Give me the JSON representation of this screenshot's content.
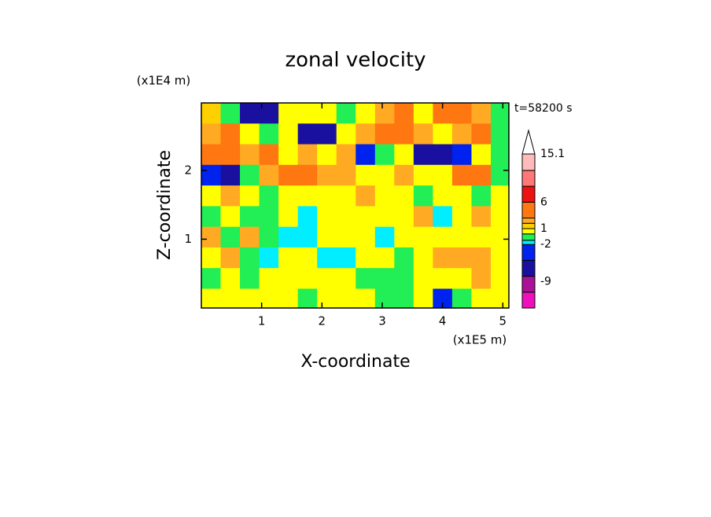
{
  "chart_data": {
    "type": "contour",
    "title": "zonal velocity",
    "xlabel": "X-coordinate",
    "ylabel": "Z-coordinate",
    "x_unit": "(x1E5 m)",
    "y_unit": "(x1E4 m)",
    "annotation": "t=58200 s",
    "xlim": [
      0,
      5.1
    ],
    "ylim": [
      0,
      2.98
    ],
    "xticks": [
      1,
      2,
      3,
      4,
      5
    ],
    "yticks": [
      1,
      2
    ],
    "x": [
      0.16,
      0.48,
      0.8,
      1.12,
      1.44,
      1.76,
      2.08,
      2.4,
      2.72,
      3.04,
      3.36,
      3.68,
      4.0,
      4.32,
      4.64,
      4.96
    ],
    "y": [
      2.83,
      2.53,
      2.23,
      1.93,
      1.63,
      1.33,
      1.03,
      0.73,
      0.43,
      0.13
    ],
    "z": [
      [
        1,
        -1,
        -7,
        -7,
        0.5,
        0.5,
        0.5,
        -1,
        0.5,
        2.5,
        4,
        0.5,
        4,
        4,
        2.5,
        -1
      ],
      [
        2.5,
        4,
        0.5,
        -1,
        0.5,
        -7,
        -7,
        0.5,
        2.5,
        4,
        4,
        2.5,
        0.5,
        2.5,
        4,
        -1
      ],
      [
        4,
        4,
        2.5,
        4,
        0.5,
        2.5,
        0.5,
        2.5,
        -4,
        -1,
        0.5,
        -7,
        -7,
        -4,
        0.5,
        -1
      ],
      [
        -4,
        -7,
        -1,
        2.5,
        4,
        4,
        2.5,
        2.5,
        0.5,
        0.5,
        2.5,
        0.5,
        0.5,
        4,
        4,
        -1
      ],
      [
        0.5,
        2.5,
        0.5,
        -1,
        0.5,
        0.5,
        0.5,
        0.5,
        2.5,
        0.5,
        0.5,
        -1,
        0.5,
        0.5,
        -1,
        0.5
      ],
      [
        -1,
        0.5,
        -1,
        -1,
        0.5,
        -1.5,
        0.5,
        0.5,
        0.5,
        0.5,
        0.5,
        2.5,
        -1.5,
        0.5,
        2.5,
        0.5
      ],
      [
        2.5,
        -1,
        2.5,
        -1,
        -1.5,
        -1.5,
        0.5,
        0.5,
        0.5,
        -1.5,
        0.5,
        0.5,
        0.5,
        0.5,
        0.5,
        0.5
      ],
      [
        0.5,
        2.5,
        -1,
        -1.5,
        0.5,
        0.5,
        -1.5,
        -1.5,
        0.5,
        0.5,
        -1,
        0.5,
        2.5,
        2.5,
        2.5,
        0.5
      ],
      [
        -1,
        0.5,
        -1,
        0.5,
        0.5,
        0.5,
        0.5,
        0.5,
        -1,
        -1,
        -1,
        0.5,
        0.5,
        0.5,
        2.5,
        0.5
      ],
      [
        0.5,
        0.5,
        0.5,
        0.5,
        0.5,
        -1,
        0.5,
        0.5,
        0.5,
        -1,
        -1,
        0.5,
        -4,
        -1,
        0.5,
        0.5
      ]
    ],
    "levels": [
      -14,
      -11,
      -8,
      -5,
      -2,
      -1.2,
      0,
      1,
      2,
      3,
      6,
      9,
      12,
      15.1
    ],
    "colors": [
      "#ee11bb",
      "#aa1199",
      "#1a10a0",
      "#0022ee",
      "#00eeff",
      "#22ee55",
      "#ffff00",
      "#ffd000",
      "#ffaa22",
      "#ff7711",
      "#ee1111",
      "#ff7777",
      "#ffbbbb"
    ],
    "over_color": "#ffffff",
    "cticks": [
      15.1,
      6,
      1,
      -2,
      -9
    ]
  }
}
